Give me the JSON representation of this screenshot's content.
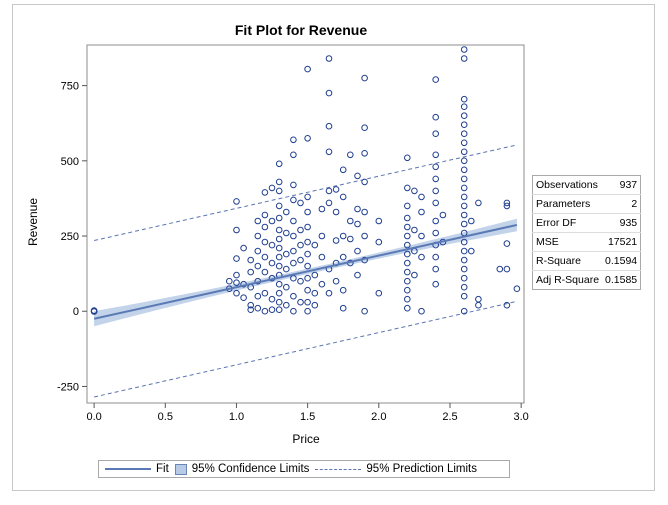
{
  "chart_data": {
    "type": "scatter",
    "title": "Fit Plot for Revenue",
    "xlabel": "Price",
    "ylabel": "Revenue",
    "xlim": [
      -0.05,
      3.02
    ],
    "ylim": [
      -305,
      885
    ],
    "x_ticks": [
      0.0,
      0.5,
      1.0,
      1.5,
      2.0,
      2.5,
      3.0
    ],
    "x_tick_labels": [
      "0.0",
      "0.5",
      "1.0",
      "1.5",
      "2.0",
      "2.5",
      "3.0"
    ],
    "y_ticks": [
      -250,
      0,
      250,
      500,
      750
    ],
    "y_tick_labels": [
      "-250",
      "0",
      "250",
      "500",
      "750"
    ],
    "fit": {
      "intercept": -25,
      "slope": 105,
      "x_range": [
        0,
        2.97
      ]
    },
    "confidence_half_width": {
      "at_ends": 25,
      "at_mean": 9,
      "mean_x": 1.6
    },
    "prediction_limits": {
      "lower_intercept": -285,
      "upper_intercept": 235,
      "slope": 107
    },
    "points": [
      [
        0.0,
        0
      ],
      [
        0.0,
        2
      ],
      [
        0.0,
        -1
      ],
      [
        0.95,
        100
      ],
      [
        0.95,
        75
      ],
      [
        1.0,
        175
      ],
      [
        1.0,
        120
      ],
      [
        1.0,
        95
      ],
      [
        1.0,
        60
      ],
      [
        1.0,
        270
      ],
      [
        1.0,
        365
      ],
      [
        1.05,
        210
      ],
      [
        1.05,
        90
      ],
      [
        1.05,
        45
      ],
      [
        1.1,
        170
      ],
      [
        1.1,
        130
      ],
      [
        1.1,
        80
      ],
      [
        1.1,
        20
      ],
      [
        1.1,
        5
      ],
      [
        1.15,
        300
      ],
      [
        1.15,
        250
      ],
      [
        1.15,
        200
      ],
      [
        1.15,
        150
      ],
      [
        1.15,
        100
      ],
      [
        1.15,
        50
      ],
      [
        1.15,
        10
      ],
      [
        1.2,
        395
      ],
      [
        1.2,
        320
      ],
      [
        1.2,
        280
      ],
      [
        1.2,
        230
      ],
      [
        1.2,
        180
      ],
      [
        1.2,
        130
      ],
      [
        1.2,
        60
      ],
      [
        1.2,
        0
      ],
      [
        1.25,
        410
      ],
      [
        1.25,
        300
      ],
      [
        1.25,
        220
      ],
      [
        1.25,
        160
      ],
      [
        1.25,
        110
      ],
      [
        1.25,
        40
      ],
      [
        1.25,
        5
      ],
      [
        1.3,
        490
      ],
      [
        1.3,
        430
      ],
      [
        1.3,
        400
      ],
      [
        1.3,
        350
      ],
      [
        1.3,
        310
      ],
      [
        1.3,
        270
      ],
      [
        1.3,
        240
      ],
      [
        1.3,
        210
      ],
      [
        1.3,
        180
      ],
      [
        1.3,
        150
      ],
      [
        1.3,
        120
      ],
      [
        1.3,
        90
      ],
      [
        1.3,
        60
      ],
      [
        1.3,
        30
      ],
      [
        1.3,
        5
      ],
      [
        1.35,
        330
      ],
      [
        1.35,
        260
      ],
      [
        1.35,
        190
      ],
      [
        1.35,
        140
      ],
      [
        1.35,
        80
      ],
      [
        1.35,
        20
      ],
      [
        1.4,
        570
      ],
      [
        1.4,
        520
      ],
      [
        1.4,
        420
      ],
      [
        1.4,
        370
      ],
      [
        1.4,
        300
      ],
      [
        1.4,
        250
      ],
      [
        1.4,
        200
      ],
      [
        1.4,
        160
      ],
      [
        1.4,
        110
      ],
      [
        1.4,
        50
      ],
      [
        1.4,
        0
      ],
      [
        1.45,
        360
      ],
      [
        1.45,
        270
      ],
      [
        1.45,
        220
      ],
      [
        1.45,
        170
      ],
      [
        1.45,
        100
      ],
      [
        1.45,
        30
      ],
      [
        1.5,
        805
      ],
      [
        1.5,
        575
      ],
      [
        1.5,
        380
      ],
      [
        1.5,
        330
      ],
      [
        1.5,
        280
      ],
      [
        1.5,
        230
      ],
      [
        1.5,
        190
      ],
      [
        1.5,
        150
      ],
      [
        1.5,
        110
      ],
      [
        1.5,
        70
      ],
      [
        1.5,
        30
      ],
      [
        1.5,
        0
      ],
      [
        1.55,
        220
      ],
      [
        1.55,
        120
      ],
      [
        1.55,
        60
      ],
      [
        1.55,
        20
      ],
      [
        1.6,
        340
      ],
      [
        1.6,
        250
      ],
      [
        1.6,
        180
      ],
      [
        1.6,
        90
      ],
      [
        1.65,
        840
      ],
      [
        1.65,
        725
      ],
      [
        1.65,
        615
      ],
      [
        1.65,
        530
      ],
      [
        1.65,
        400
      ],
      [
        1.65,
        360
      ],
      [
        1.65,
        140
      ],
      [
        1.65,
        60
      ],
      [
        1.7,
        405
      ],
      [
        1.7,
        330
      ],
      [
        1.7,
        235
      ],
      [
        1.7,
        160
      ],
      [
        1.7,
        100
      ],
      [
        1.75,
        470
      ],
      [
        1.75,
        380
      ],
      [
        1.75,
        250
      ],
      [
        1.75,
        180
      ],
      [
        1.75,
        70
      ],
      [
        1.75,
        10
      ],
      [
        1.8,
        520
      ],
      [
        1.8,
        300
      ],
      [
        1.8,
        240
      ],
      [
        1.8,
        160
      ],
      [
        1.85,
        450
      ],
      [
        1.85,
        340
      ],
      [
        1.85,
        290
      ],
      [
        1.85,
        200
      ],
      [
        1.85,
        120
      ],
      [
        1.9,
        775
      ],
      [
        1.9,
        610
      ],
      [
        1.9,
        525
      ],
      [
        1.9,
        430
      ],
      [
        1.9,
        330
      ],
      [
        1.9,
        250
      ],
      [
        1.9,
        170
      ],
      [
        1.9,
        0
      ],
      [
        2.0,
        300
      ],
      [
        2.0,
        230
      ],
      [
        2.0,
        60
      ],
      [
        2.2,
        510
      ],
      [
        2.2,
        410
      ],
      [
        2.2,
        350
      ],
      [
        2.2,
        310
      ],
      [
        2.2,
        280
      ],
      [
        2.2,
        250
      ],
      [
        2.2,
        220
      ],
      [
        2.2,
        190
      ],
      [
        2.2,
        160
      ],
      [
        2.2,
        130
      ],
      [
        2.2,
        100
      ],
      [
        2.2,
        70
      ],
      [
        2.2,
        40
      ],
      [
        2.2,
        10
      ],
      [
        2.25,
        400
      ],
      [
        2.25,
        270
      ],
      [
        2.25,
        200
      ],
      [
        2.25,
        120
      ],
      [
        2.3,
        380
      ],
      [
        2.3,
        330
      ],
      [
        2.3,
        250
      ],
      [
        2.3,
        180
      ],
      [
        2.3,
        0
      ],
      [
        2.4,
        770
      ],
      [
        2.4,
        645
      ],
      [
        2.4,
        590
      ],
      [
        2.4,
        520
      ],
      [
        2.4,
        480
      ],
      [
        2.4,
        440
      ],
      [
        2.4,
        400
      ],
      [
        2.4,
        360
      ],
      [
        2.4,
        300
      ],
      [
        2.4,
        260
      ],
      [
        2.4,
        220
      ],
      [
        2.4,
        180
      ],
      [
        2.4,
        140
      ],
      [
        2.4,
        90
      ],
      [
        2.45,
        320
      ],
      [
        2.45,
        230
      ],
      [
        2.6,
        870
      ],
      [
        2.6,
        840
      ],
      [
        2.6,
        705
      ],
      [
        2.6,
        680
      ],
      [
        2.6,
        650
      ],
      [
        2.6,
        620
      ],
      [
        2.6,
        590
      ],
      [
        2.6,
        560
      ],
      [
        2.6,
        530
      ],
      [
        2.6,
        500
      ],
      [
        2.6,
        470
      ],
      [
        2.6,
        440
      ],
      [
        2.6,
        410
      ],
      [
        2.6,
        380
      ],
      [
        2.6,
        350
      ],
      [
        2.6,
        320
      ],
      [
        2.6,
        290
      ],
      [
        2.6,
        260
      ],
      [
        2.6,
        230
      ],
      [
        2.6,
        200
      ],
      [
        2.6,
        170
      ],
      [
        2.6,
        140
      ],
      [
        2.6,
        110
      ],
      [
        2.6,
        80
      ],
      [
        2.6,
        50
      ],
      [
        2.6,
        0
      ],
      [
        2.65,
        300
      ],
      [
        2.65,
        200
      ],
      [
        2.7,
        360
      ],
      [
        2.7,
        40
      ],
      [
        2.7,
        20
      ],
      [
        2.85,
        140
      ],
      [
        2.9,
        360
      ],
      [
        2.9,
        350
      ],
      [
        2.9,
        225
      ],
      [
        2.9,
        140
      ],
      [
        2.9,
        20
      ],
      [
        2.97,
        75
      ]
    ],
    "stats": [
      {
        "label": "Observations",
        "value": "937"
      },
      {
        "label": "Parameters",
        "value": "2"
      },
      {
        "label": "Error DF",
        "value": "935"
      },
      {
        "label": "MSE",
        "value": "17521"
      },
      {
        "label": "R-Square",
        "value": "0.1594"
      },
      {
        "label": "Adj R-Square",
        "value": "0.1585"
      }
    ],
    "legend": {
      "position": "bottom",
      "fit_label": "Fit",
      "confidence_label": "95% Confidence Limits",
      "prediction_label": "95% Prediction Limits"
    },
    "colors": {
      "marker": "#1f3e8f",
      "fit_line": "#5b7ab5",
      "confidence_band": "#b7cbe6",
      "prediction_line": "#5b75b0"
    },
    "grid": false
  }
}
